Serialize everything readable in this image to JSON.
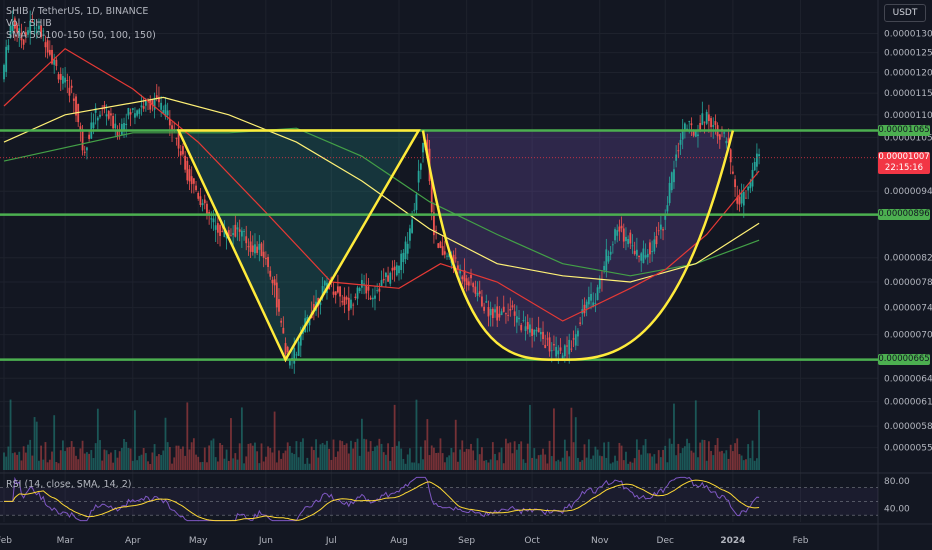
{
  "header": {
    "symbol": "SHIB / TetherUS, 1D, BINANCE",
    "volume": "Vol · SHIB",
    "sma": "SMA 50-100-150 (50, 100, 150)",
    "currency": "USDT"
  },
  "rsi_legend": "RSI (14, close, SMA, 14, 2)",
  "chart_data": {
    "type": "candlestick",
    "y_scale": "log",
    "ylim": [
      5.3e-06,
      1.37e-05
    ],
    "x_start": "2023-02-01",
    "x_end": "2024-02-20",
    "xticks": [
      {
        "label": "Feb",
        "date": "2023-02-01"
      },
      {
        "label": "Mar",
        "date": "2023-03-01"
      },
      {
        "label": "Apr",
        "date": "2023-04-01"
      },
      {
        "label": "May",
        "date": "2023-05-01"
      },
      {
        "label": "Jun",
        "date": "2023-06-01"
      },
      {
        "label": "Jul",
        "date": "2023-07-01"
      },
      {
        "label": "Aug",
        "date": "2023-08-01"
      },
      {
        "label": "Sep",
        "date": "2023-09-01"
      },
      {
        "label": "Oct",
        "date": "2023-10-01"
      },
      {
        "label": "Nov",
        "date": "2023-11-01"
      },
      {
        "label": "Dec",
        "date": "2023-12-01"
      },
      {
        "label": "2024",
        "date": "2024-01-01"
      },
      {
        "label": "Feb",
        "date": "2024-02-01"
      }
    ],
    "yticks": [
      "0.00001300",
      "0.00001250",
      "0.00001200",
      "0.00001150",
      "0.00001100",
      "0.00001050",
      "0.00000940",
      "0.00000820",
      "0.00000780",
      "0.00000740",
      "0.00000700",
      "0.00000640",
      "0.00000610",
      "0.00000580",
      "0.00000555"
    ],
    "levels": [
      {
        "label": "0.00001065",
        "value": 1.065e-05
      },
      {
        "label": "0.00000896",
        "value": 8.96e-06
      },
      {
        "label": "0.00000665",
        "value": 6.65e-06
      }
    ],
    "last_price": {
      "label": "0.00001007",
      "countdown": "22:15:16",
      "value": 1.007e-05
    },
    "price_path": [
      [
        "2023-02-01",
        1.2e-05
      ],
      [
        "2023-02-05",
        1.34e-05
      ],
      [
        "2023-02-10",
        1.28e-05
      ],
      [
        "2023-02-14",
        1.33e-05
      ],
      [
        "2023-02-20",
        1.29e-05
      ],
      [
        "2023-02-24",
        1.23e-05
      ],
      [
        "2023-02-28",
        1.18e-05
      ],
      [
        "2023-03-05",
        1.15e-05
      ],
      [
        "2023-03-10",
        1.02e-05
      ],
      [
        "2023-03-15",
        1.1e-05
      ],
      [
        "2023-03-20",
        1.11e-05
      ],
      [
        "2023-03-25",
        1.06e-05
      ],
      [
        "2023-03-30",
        1.1e-05
      ],
      [
        "2023-04-05",
        1.12e-05
      ],
      [
        "2023-04-12",
        1.13e-05
      ],
      [
        "2023-04-18",
        1.1e-05
      ],
      [
        "2023-04-22",
        1.04e-05
      ],
      [
        "2023-04-26",
        9.8e-06
      ],
      [
        "2023-05-01",
        9.4e-06
      ],
      [
        "2023-05-05",
        9e-06
      ],
      [
        "2023-05-10",
        8.7e-06
      ],
      [
        "2023-05-15",
        8.6e-06
      ],
      [
        "2023-05-20",
        8.7e-06
      ],
      [
        "2023-05-25",
        8.4e-06
      ],
      [
        "2023-05-31",
        8.3e-06
      ],
      [
        "2023-06-05",
        7.8e-06
      ],
      [
        "2023-06-09",
        7e-06
      ],
      [
        "2023-06-12",
        6.6e-06
      ],
      [
        "2023-06-16",
        6.8e-06
      ],
      [
        "2023-06-20",
        7.2e-06
      ],
      [
        "2023-06-25",
        7.5e-06
      ],
      [
        "2023-06-30",
        7.8e-06
      ],
      [
        "2023-07-05",
        7.6e-06
      ],
      [
        "2023-07-10",
        7.4e-06
      ],
      [
        "2023-07-14",
        7.8e-06
      ],
      [
        "2023-07-20",
        7.6e-06
      ],
      [
        "2023-07-25",
        7.8e-06
      ],
      [
        "2023-07-31",
        8e-06
      ],
      [
        "2023-08-04",
        8.3e-06
      ],
      [
        "2023-08-08",
        9e-06
      ],
      [
        "2023-08-12",
        1.02e-05
      ],
      [
        "2023-08-14",
        1.05e-05
      ],
      [
        "2023-08-17",
        8.8e-06
      ],
      [
        "2023-08-20",
        8.3e-06
      ],
      [
        "2023-08-25",
        8.2e-06
      ],
      [
        "2023-08-31",
        7.9e-06
      ],
      [
        "2023-09-05",
        7.7e-06
      ],
      [
        "2023-09-10",
        7.4e-06
      ],
      [
        "2023-09-15",
        7.3e-06
      ],
      [
        "2023-09-20",
        7.4e-06
      ],
      [
        "2023-09-25",
        7.2e-06
      ],
      [
        "2023-09-30",
        7.1e-06
      ],
      [
        "2023-10-05",
        7e-06
      ],
      [
        "2023-10-10",
        6.8e-06
      ],
      [
        "2023-10-15",
        6.7e-06
      ],
      [
        "2023-10-20",
        6.9e-06
      ],
      [
        "2023-10-25",
        7.4e-06
      ],
      [
        "2023-10-31",
        7.6e-06
      ],
      [
        "2023-11-05",
        8.3e-06
      ],
      [
        "2023-11-10",
        8.7e-06
      ],
      [
        "2023-11-15",
        8.5e-06
      ],
      [
        "2023-11-20",
        8.2e-06
      ],
      [
        "2023-11-25",
        8.4e-06
      ],
      [
        "2023-11-30",
        8.7e-06
      ],
      [
        "2023-12-05",
        9.8e-06
      ],
      [
        "2023-12-10",
        1.08e-05
      ],
      [
        "2023-12-15",
        1.06e-05
      ],
      [
        "2023-12-20",
        1.1e-05
      ],
      [
        "2023-12-25",
        1.07e-05
      ],
      [
        "2023-12-30",
        1.04e-05
      ],
      [
        "2024-01-03",
        9.2e-06
      ],
      [
        "2024-01-08",
        9.3e-06
      ],
      [
        "2024-01-11",
        9.9e-06
      ],
      [
        "2024-01-13",
        1.01e-05
      ]
    ],
    "sma50": [
      [
        "2023-02-01",
        1.12e-05
      ],
      [
        "2023-03-01",
        1.26e-05
      ],
      [
        "2023-04-01",
        1.16e-05
      ],
      [
        "2023-05-01",
        1.04e-05
      ],
      [
        "2023-06-01",
        9e-06
      ],
      [
        "2023-07-01",
        7.8e-06
      ],
      [
        "2023-08-01",
        7.7e-06
      ],
      [
        "2023-08-20",
        8.1e-06
      ],
      [
        "2023-09-15",
        7.8e-06
      ],
      [
        "2023-10-15",
        7.2e-06
      ],
      [
        "2023-11-15",
        7.7e-06
      ],
      [
        "2023-12-01",
        8e-06
      ],
      [
        "2023-12-20",
        8.6e-06
      ],
      [
        "2024-01-13",
        9.8e-06
      ]
    ],
    "sma100": [
      [
        "2023-02-01",
        1.04e-05
      ],
      [
        "2023-03-01",
        1.1e-05
      ],
      [
        "2023-04-15",
        1.14e-05
      ],
      [
        "2023-05-15",
        1.1e-05
      ],
      [
        "2023-06-15",
        1.04e-05
      ],
      [
        "2023-07-15",
        9.6e-06
      ],
      [
        "2023-08-15",
        8.7e-06
      ],
      [
        "2023-09-15",
        8.1e-06
      ],
      [
        "2023-10-15",
        7.9e-06
      ],
      [
        "2023-11-15",
        7.8e-06
      ],
      [
        "2023-12-15",
        8.1e-06
      ],
      [
        "2024-01-13",
        8.8e-06
      ]
    ],
    "sma150": [
      [
        "2023-02-01",
        1e-05
      ],
      [
        "2023-04-01",
        1.06e-05
      ],
      [
        "2023-05-15",
        1.06e-05
      ],
      [
        "2023-06-15",
        1.07e-05
      ],
      [
        "2023-07-15",
        1.01e-05
      ],
      [
        "2023-08-15",
        9.2e-06
      ],
      [
        "2023-09-15",
        8.6e-06
      ],
      [
        "2023-10-15",
        8.1e-06
      ],
      [
        "2023-11-15",
        7.9e-06
      ],
      [
        "2023-12-15",
        8.1e-06
      ],
      [
        "2024-01-13",
        8.5e-06
      ]
    ],
    "rsi_yticks": [
      "80.00",
      "40.00"
    ],
    "rsi_ylim": [
      20,
      90
    ]
  },
  "colors": {
    "level": "#4caf50",
    "pattern": "#ffeb3b",
    "up": "#26a69a",
    "down": "#ef5350",
    "sma50": "#e53935",
    "sma100": "#fff176",
    "sma150": "#43a047",
    "rsi": "#7e57c2",
    "rsi_sma": "#fdd835"
  }
}
